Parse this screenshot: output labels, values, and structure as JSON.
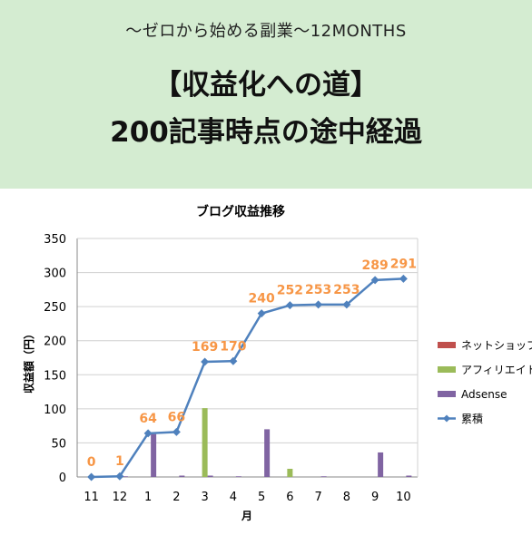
{
  "banner": {
    "subtitle": "〜ゼロから始める副業〜12MONTHS",
    "title_line1": "【収益化への道】",
    "title_line2": "200記事時点の途中経過"
  },
  "colors": {
    "banner_bg": "#d4ecd1",
    "net_shop": "#c0504d",
    "affiliate": "#9bbb59",
    "adsense": "#8064a2",
    "cumulative": "#4f81bd",
    "data_label": "#f79646"
  },
  "chart_data": {
    "type": "bar",
    "title": "ブログ収益推移",
    "xlabel": "月",
    "ylabel": "収益額（円）",
    "categories": [
      "11",
      "12",
      "1",
      "2",
      "3",
      "4",
      "5",
      "6",
      "7",
      "8",
      "9",
      "10"
    ],
    "ylim": [
      0,
      350
    ],
    "yticks": [
      "0",
      "50",
      "100",
      "150",
      "200",
      "250",
      "300",
      "350"
    ],
    "grid": true,
    "legend_position": "right",
    "series": [
      {
        "name": "ネットショップ",
        "type": "bar",
        "values": [
          0,
          0,
          0,
          0,
          0,
          0,
          0,
          0,
          0,
          0,
          0,
          0
        ]
      },
      {
        "name": "アフィリエイト",
        "type": "bar",
        "values": [
          0,
          0,
          0,
          0,
          101,
          0,
          0,
          12,
          0,
          0,
          0,
          0
        ]
      },
      {
        "name": "Adsense",
        "type": "bar",
        "values": [
          0,
          1,
          63,
          2,
          2,
          1,
          70,
          0,
          1,
          0,
          36,
          2
        ]
      },
      {
        "name": "累積",
        "type": "line",
        "values": [
          0,
          1,
          64,
          66,
          169,
          170,
          240,
          252,
          253,
          253,
          289,
          291
        ]
      }
    ],
    "data_labels": [
      "0",
      "1",
      "64",
      "66",
      "169",
      "170",
      "240",
      "252",
      "253",
      "253",
      "289",
      "291"
    ]
  }
}
